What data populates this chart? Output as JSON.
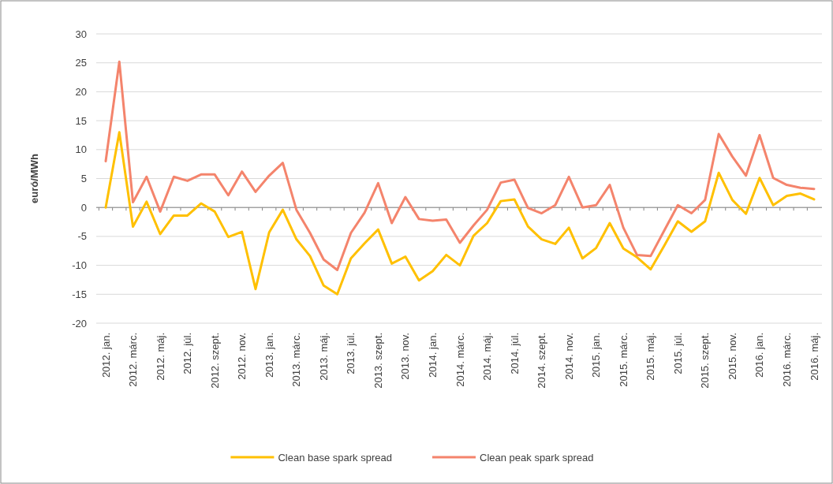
{
  "chart_data": {
    "type": "line",
    "ylabel": "euró/MWh",
    "categories": [
      "2012. jan.",
      null,
      "2012. márc.",
      null,
      "2012. máj.",
      null,
      "2012. júl.",
      null,
      "2012. szept.",
      null,
      "2012. nov.",
      null,
      "2013. jan.",
      null,
      "2013. márc.",
      null,
      "2013. máj.",
      null,
      "2013. júl.",
      null,
      "2013. szept.",
      null,
      "2013. nov.",
      null,
      "2014. jan.",
      null,
      "2014. márc.",
      null,
      "2014. máj.",
      null,
      "2014. júl.",
      null,
      "2014. szept.",
      null,
      "2014. nov.",
      null,
      "2015. jan.",
      null,
      "2015. márc.",
      null,
      "2015. máj.",
      null,
      "2015. júl.",
      null,
      "2015. szept.",
      null,
      "2015. nov.",
      null,
      "2016. jan.",
      null,
      "2016. márc.",
      null,
      "2016. máj."
    ],
    "series": [
      {
        "name": "Clean base spark spread",
        "color": "#ffc000",
        "values": [
          0,
          13,
          -3.3,
          1,
          -4.6,
          -1.4,
          -1.4,
          0.7,
          -0.7,
          -5.1,
          -4.2,
          -14.1,
          -4.3,
          -0.4,
          -5.5,
          -8.4,
          -13.5,
          -15,
          -8.8,
          -6.2,
          -3.8,
          -9.7,
          -8.5,
          -12.6,
          -11,
          -8.2,
          -10,
          -4.9,
          -2.7,
          1.1,
          1.4,
          -3.3,
          -5.5,
          -6.3,
          -3.5,
          -8.8,
          -7,
          -2.7,
          -7.1,
          -8.6,
          -10.7,
          -6.6,
          -2.4,
          -4.2,
          -2.4,
          6,
          1.3,
          -1.1,
          5.1,
          0.4,
          2,
          2.4,
          1.4
        ]
      },
      {
        "name": "Clean peak spark spread",
        "color": "#f4846c",
        "values": [
          8,
          25.2,
          0.9,
          5.3,
          -0.7,
          5.3,
          4.6,
          5.7,
          5.7,
          2.1,
          6.2,
          2.7,
          5.5,
          7.7,
          -0.4,
          -4.4,
          -9,
          -10.8,
          -4.4,
          -0.9,
          4.2,
          -2.7,
          1.8,
          -2,
          -2.3,
          -2.1,
          -6.1,
          -3.1,
          -0.4,
          4.3,
          4.8,
          -0.1,
          -1,
          0.4,
          5.3,
          0,
          0.4,
          3.9,
          -3.5,
          -8.2,
          -8.4,
          -4,
          0.4,
          -1,
          1.3,
          12.7,
          8.8,
          5.5,
          12.5,
          5.1,
          3.9,
          3.4,
          3.2
        ]
      }
    ],
    "ylim": [
      -20,
      30
    ],
    "yticks": [
      -20,
      -15,
      -10,
      -5,
      0,
      5,
      10,
      15,
      20,
      25,
      30
    ],
    "grid": "y",
    "legend": "bottom",
    "line_style": "solid",
    "marker": "none"
  }
}
